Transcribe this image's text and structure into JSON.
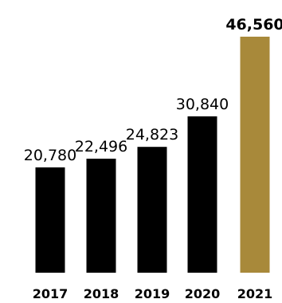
{
  "chart_data": {
    "type": "bar",
    "categories": [
      "2017",
      "2018",
      "2019",
      "2020",
      "2021"
    ],
    "values": [
      20780,
      22496,
      24823,
      30840,
      46560
    ],
    "value_labels": [
      "20,780",
      "22,496",
      "24,823",
      "30,840",
      "46,560"
    ],
    "highlight_index": 4,
    "title": "",
    "xlabel": "",
    "ylabel": "",
    "ylim": [
      0,
      46560
    ],
    "grid": false,
    "legend": "none"
  },
  "colors": {
    "bar": "#000000",
    "highlight_bar": "#a8893a",
    "highlight_label": "#a8893a",
    "label": "#000000",
    "background": "#ffffff"
  }
}
